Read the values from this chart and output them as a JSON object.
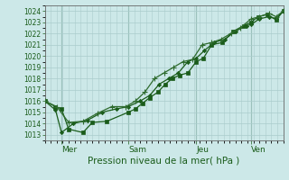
{
  "xlabel": "Pression niveau de la mer( hPa )",
  "ylim": [
    1012.5,
    1024.5
  ],
  "yticks": [
    1013,
    1014,
    1015,
    1016,
    1017,
    1018,
    1019,
    1020,
    1021,
    1022,
    1023,
    1024
  ],
  "xtick_labels": [
    "Mer",
    "Sam",
    "Jeu",
    "Ven"
  ],
  "xtick_positions": [
    0.07,
    0.35,
    0.635,
    0.865
  ],
  "bg_color": "#cce8e8",
  "grid_color": "#aacccc",
  "line_color_dark": "#1a5c1a",
  "line_color_mid": "#2e6b2e",
  "series1_x": [
    0.0,
    0.045,
    0.07,
    0.1,
    0.16,
    0.2,
    0.26,
    0.35,
    0.38,
    0.41,
    0.44,
    0.475,
    0.505,
    0.535,
    0.565,
    0.6,
    0.635,
    0.665,
    0.7,
    0.745,
    0.79,
    0.835,
    0.865,
    0.895,
    0.935,
    0.97,
    1.0
  ],
  "series1_y": [
    1016.0,
    1015.5,
    1015.3,
    1013.5,
    1013.2,
    1014.1,
    1014.2,
    1015.0,
    1015.3,
    1015.8,
    1016.3,
    1016.8,
    1017.5,
    1018.0,
    1018.3,
    1018.5,
    1019.5,
    1019.8,
    1021.0,
    1021.2,
    1022.2,
    1022.7,
    1023.0,
    1023.5,
    1023.7,
    1023.2,
    1024.0
  ],
  "series2_x": [
    0.0,
    0.045,
    0.07,
    0.12,
    0.18,
    0.24,
    0.3,
    0.35,
    0.4,
    0.44,
    0.48,
    0.52,
    0.56,
    0.6,
    0.635,
    0.67,
    0.71,
    0.755,
    0.8,
    0.845,
    0.865,
    0.9,
    0.94,
    0.97,
    1.0
  ],
  "series2_y": [
    1016.0,
    1015.2,
    1013.2,
    1014.0,
    1014.3,
    1015.0,
    1015.3,
    1015.5,
    1016.0,
    1016.5,
    1017.5,
    1018.0,
    1018.5,
    1019.5,
    1019.8,
    1020.5,
    1021.2,
    1021.5,
    1022.2,
    1022.7,
    1022.8,
    1023.3,
    1023.5,
    1023.3,
    1024.0
  ],
  "series3_x": [
    0.0,
    0.05,
    0.1,
    0.16,
    0.22,
    0.28,
    0.34,
    0.38,
    0.42,
    0.46,
    0.5,
    0.54,
    0.58,
    0.62,
    0.66,
    0.7,
    0.74,
    0.78,
    0.82,
    0.865,
    0.9,
    0.94,
    0.97,
    1.0
  ],
  "series3_y": [
    1016.0,
    1015.5,
    1014.1,
    1014.2,
    1014.9,
    1015.5,
    1015.5,
    1016.0,
    1016.8,
    1018.0,
    1018.5,
    1019.0,
    1019.5,
    1019.7,
    1021.0,
    1021.2,
    1021.5,
    1022.0,
    1022.5,
    1023.3,
    1023.5,
    1023.8,
    1023.5,
    1024.0
  ],
  "vline_positions": [
    0.07,
    0.35,
    0.635,
    0.865
  ],
  "marker_size": 2.5
}
